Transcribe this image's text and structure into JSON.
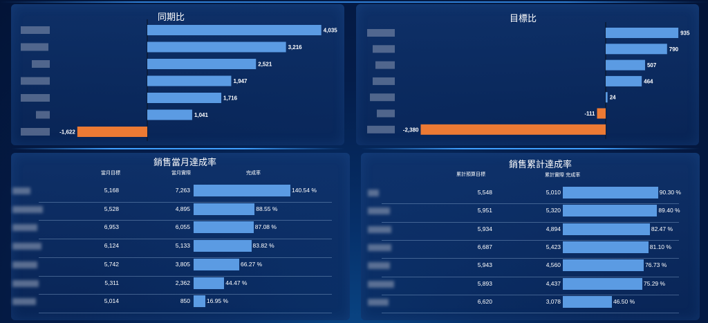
{
  "chart_data": [
    {
      "type": "bar",
      "orientation": "horizontal",
      "title": "同期比",
      "values": [
        4035,
        3216,
        2521,
        1947,
        1716,
        1041,
        -1622
      ],
      "labels": [
        "4,035",
        "3,216",
        "2,521",
        "1,947",
        "1,716",
        "1,041",
        "-1,622"
      ],
      "colors": {
        "positive": "#5b9be3",
        "negative": "#ec7a34"
      }
    },
    {
      "type": "bar",
      "orientation": "horizontal",
      "title": "目標比",
      "values": [
        935,
        790,
        507,
        464,
        24,
        -111,
        -2380
      ],
      "labels": [
        "935",
        "790",
        "507",
        "464",
        "24",
        "-111",
        "-2,380"
      ],
      "colors": {
        "positive": "#5b9be3",
        "negative": "#ec7a34"
      }
    },
    {
      "type": "table",
      "title": "銷售當月達成率",
      "columns": [
        "當月目標",
        "當月實際",
        "完成率"
      ],
      "rows": [
        {
          "target": "5,168",
          "actual": "7,263",
          "rate": 140.54,
          "rate_label": "140.54 %"
        },
        {
          "target": "5,528",
          "actual": "4,895",
          "rate": 88.55,
          "rate_label": "88.55 %"
        },
        {
          "target": "6,953",
          "actual": "6,055",
          "rate": 87.08,
          "rate_label": "87.08 %"
        },
        {
          "target": "6,124",
          "actual": "5,133",
          "rate": 83.82,
          "rate_label": "83.82 %"
        },
        {
          "target": "5,742",
          "actual": "3,805",
          "rate": 66.27,
          "rate_label": "66.27 %"
        },
        {
          "target": "5,311",
          "actual": "2,362",
          "rate": 44.47,
          "rate_label": "44.47 %"
        },
        {
          "target": "5,014",
          "actual": "850",
          "rate": 16.95,
          "rate_label": "16.95 %"
        }
      ]
    },
    {
      "type": "table",
      "title": "銷售累計達成率",
      "columns": [
        "累計預算目標",
        "累計實際 完成率"
      ],
      "rows": [
        {
          "target": "5,548",
          "actual": "5,010",
          "rate": 90.3,
          "rate_label": "90.30 %"
        },
        {
          "target": "5,951",
          "actual": "5,320",
          "rate": 89.4,
          "rate_label": "89.40 %"
        },
        {
          "target": "5,934",
          "actual": "4,894",
          "rate": 82.47,
          "rate_label": "82.47 %"
        },
        {
          "target": "6,687",
          "actual": "5,423",
          "rate": 81.1,
          "rate_label": "81.10 %"
        },
        {
          "target": "5,943",
          "actual": "4,560",
          "rate": 76.73,
          "rate_label": "76.73 %"
        },
        {
          "target": "5,893",
          "actual": "4,437",
          "rate": 75.29,
          "rate_label": "75.29 %"
        },
        {
          "target": "6,620",
          "actual": "3,078",
          "rate": 46.5,
          "rate_label": "46.50 %"
        }
      ]
    }
  ]
}
